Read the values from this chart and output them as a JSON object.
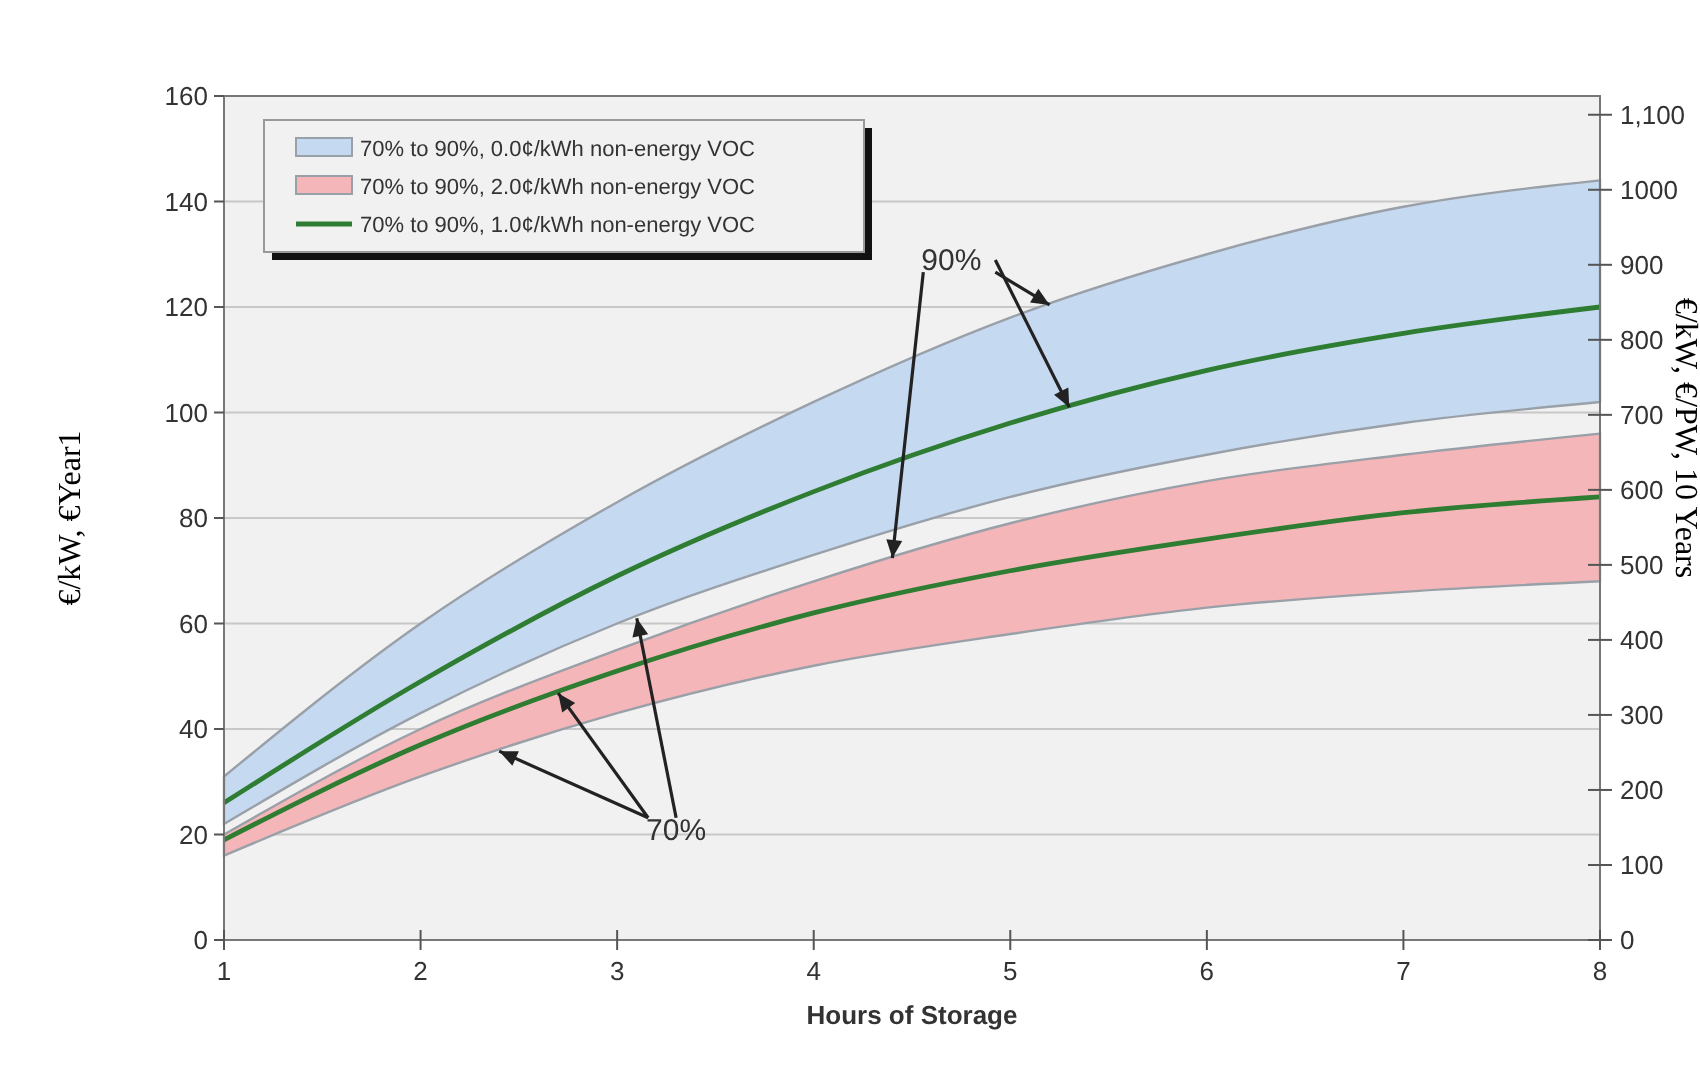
{
  "chart_data": {
    "type": "line",
    "xlabel": "Hours of Storage",
    "ylabel": "€/kW, €Year1",
    "y2label": "€/kW, €/PW, 10 Years",
    "x": [
      1,
      2,
      3,
      4,
      5,
      6,
      7,
      8
    ],
    "xlim": [
      1,
      8
    ],
    "xticks": [
      1,
      2,
      3,
      4,
      5,
      6,
      7,
      8
    ],
    "ylim": [
      0,
      160
    ],
    "yticks": [
      0,
      20,
      40,
      60,
      80,
      100,
      120,
      140,
      160
    ],
    "y2lim": [
      0,
      1125
    ],
    "y2ticks": [
      0,
      100,
      200,
      300,
      400,
      500,
      600,
      700,
      800,
      900,
      1000,
      {
        "value": 1100,
        "label": "1,100"
      }
    ],
    "grid": "y",
    "legend": "top left",
    "series": [
      {
        "name": "70% to 90%, 0.0¢/kWh non-energy VOC",
        "type": "line",
        "color": "#c5d9f1",
        "values": [
          null,
          null,
          null,
          null,
          null,
          null,
          null,
          null
        ],
        "upper": [
          31,
          60,
          83,
          102,
          118,
          130,
          139,
          144
        ],
        "lower": [
          22,
          43,
          60,
          73,
          84,
          92,
          98,
          102
        ]
      },
      {
        "name": "70% to 90%, 2.0¢/kWh non-energy VOC",
        "type": "line",
        "color": "#f4b6b8",
        "values": [
          null,
          null,
          null,
          null,
          null,
          null,
          null,
          null
        ],
        "upper": [
          20,
          40,
          55,
          68,
          79,
          87,
          92,
          96
        ],
        "lower": [
          16,
          31,
          43,
          52,
          58,
          63,
          66,
          68
        ]
      },
      {
        "name": "70% to 90%, 1.0¢/kWh non-energy VOC",
        "type": "line",
        "color": "#2e7d32",
        "values": [
          26,
          49,
          69,
          85,
          98,
          108,
          115,
          120
        ]
      },
      {
        "type": "line",
        "color": "#2e7d32",
        "values": [
          19,
          37,
          51,
          62,
          70,
          76,
          81,
          84
        ]
      }
    ],
    "annotations": [
      {
        "text": "90%",
        "x": 5.3,
        "y": 101
      },
      {
        "text": "70%",
        "x": 3.1,
        "y": 61
      }
    ]
  }
}
